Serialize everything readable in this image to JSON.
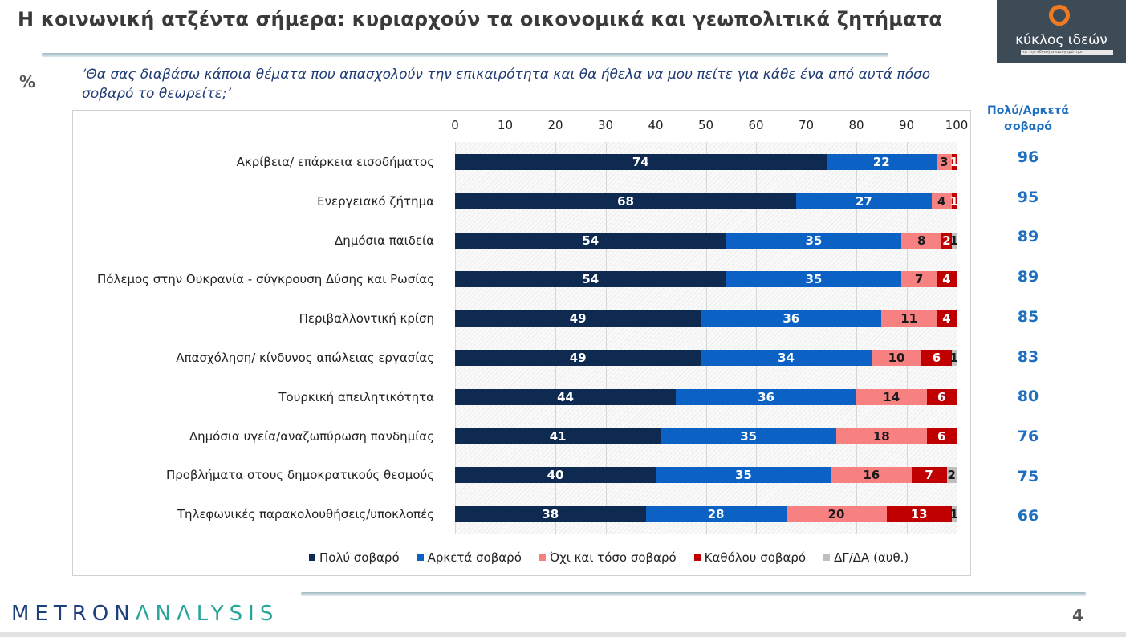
{
  "header": {
    "title": "Η κοινωνική ατζέντα σήμερα: κυριαρχούν τα οικονομικά και γεωπολιτικά ζητήματα",
    "logo_text": "κύκλος ιδεών",
    "logo_subtext": "για την εθνική ανασυγκρότηση"
  },
  "unit_label": "%",
  "question": "‘Θα σας διαβάσω κάποια θέματα που απασχολούν την επικαιρότητα και θα ήθελα να μου πείτε για κάθε ένα από αυτά πόσο σοβαρό το θεωρείτε;’",
  "right_column": {
    "header": "Πολύ/Αρκετά σοβαρό",
    "values": [
      96,
      95,
      89,
      89,
      85,
      83,
      80,
      76,
      75,
      66
    ]
  },
  "footer": {
    "brand_part1": "METRON",
    "brand_part2": "ΛNΛLYSIS",
    "page_number": "4"
  },
  "chart_data": {
    "type": "bar",
    "orientation": "horizontal",
    "stacked": true,
    "xlim": [
      0,
      100
    ],
    "xticks": [
      0,
      10,
      20,
      30,
      40,
      50,
      60,
      70,
      80,
      90,
      100
    ],
    "xaxis_position": "top",
    "grid": true,
    "legend_position": "bottom",
    "categories": [
      "Ακρίβεια/ επάρκεια εισοδήματος",
      "Ενεργειακό ζήτημα",
      "Δημόσια παιδεία",
      "Πόλεμος στην Ουκρανία - σύγκρουση Δύσης και Ρωσίας",
      "Περιβαλλοντική κρίση",
      "Απασχόληση/ κίνδυνος απώλειας εργασίας",
      "Τουρκική απειλητικότητα",
      "Δημόσια υγεία/αναζωπύρωση πανδημίας",
      "Προβλήματα στους δημοκρατικούς θεσμούς",
      "Τηλεφωνικές παρακολουθήσεις/υποκλοπές"
    ],
    "series": [
      {
        "name": "Πολύ σοβαρό",
        "color": "#0e2a50",
        "label_color": "#ffffff",
        "values": [
          74,
          68,
          54,
          54,
          49,
          49,
          44,
          41,
          40,
          38
        ]
      },
      {
        "name": "Αρκετά σοβαρό",
        "color": "#0b62c4",
        "label_color": "#ffffff",
        "values": [
          22,
          27,
          35,
          35,
          36,
          34,
          36,
          35,
          35,
          28
        ]
      },
      {
        "name": "Όχι και τόσο σοβαρό",
        "color": "#f78080",
        "label_color": "#1a1a1a",
        "values": [
          3,
          4,
          8,
          7,
          11,
          10,
          14,
          18,
          16,
          20
        ]
      },
      {
        "name": "Καθόλου σοβαρό",
        "color": "#c00000",
        "label_color": "#ffffff",
        "values": [
          1,
          1,
          2,
          4,
          4,
          6,
          6,
          6,
          7,
          13
        ]
      },
      {
        "name": "ΔΓ/ΔΑ (αυθ.)",
        "color": "#bfbfbf",
        "label_color": "#1a1a1a",
        "values": [
          null,
          null,
          1,
          null,
          null,
          1,
          null,
          null,
          2,
          1
        ]
      }
    ]
  }
}
